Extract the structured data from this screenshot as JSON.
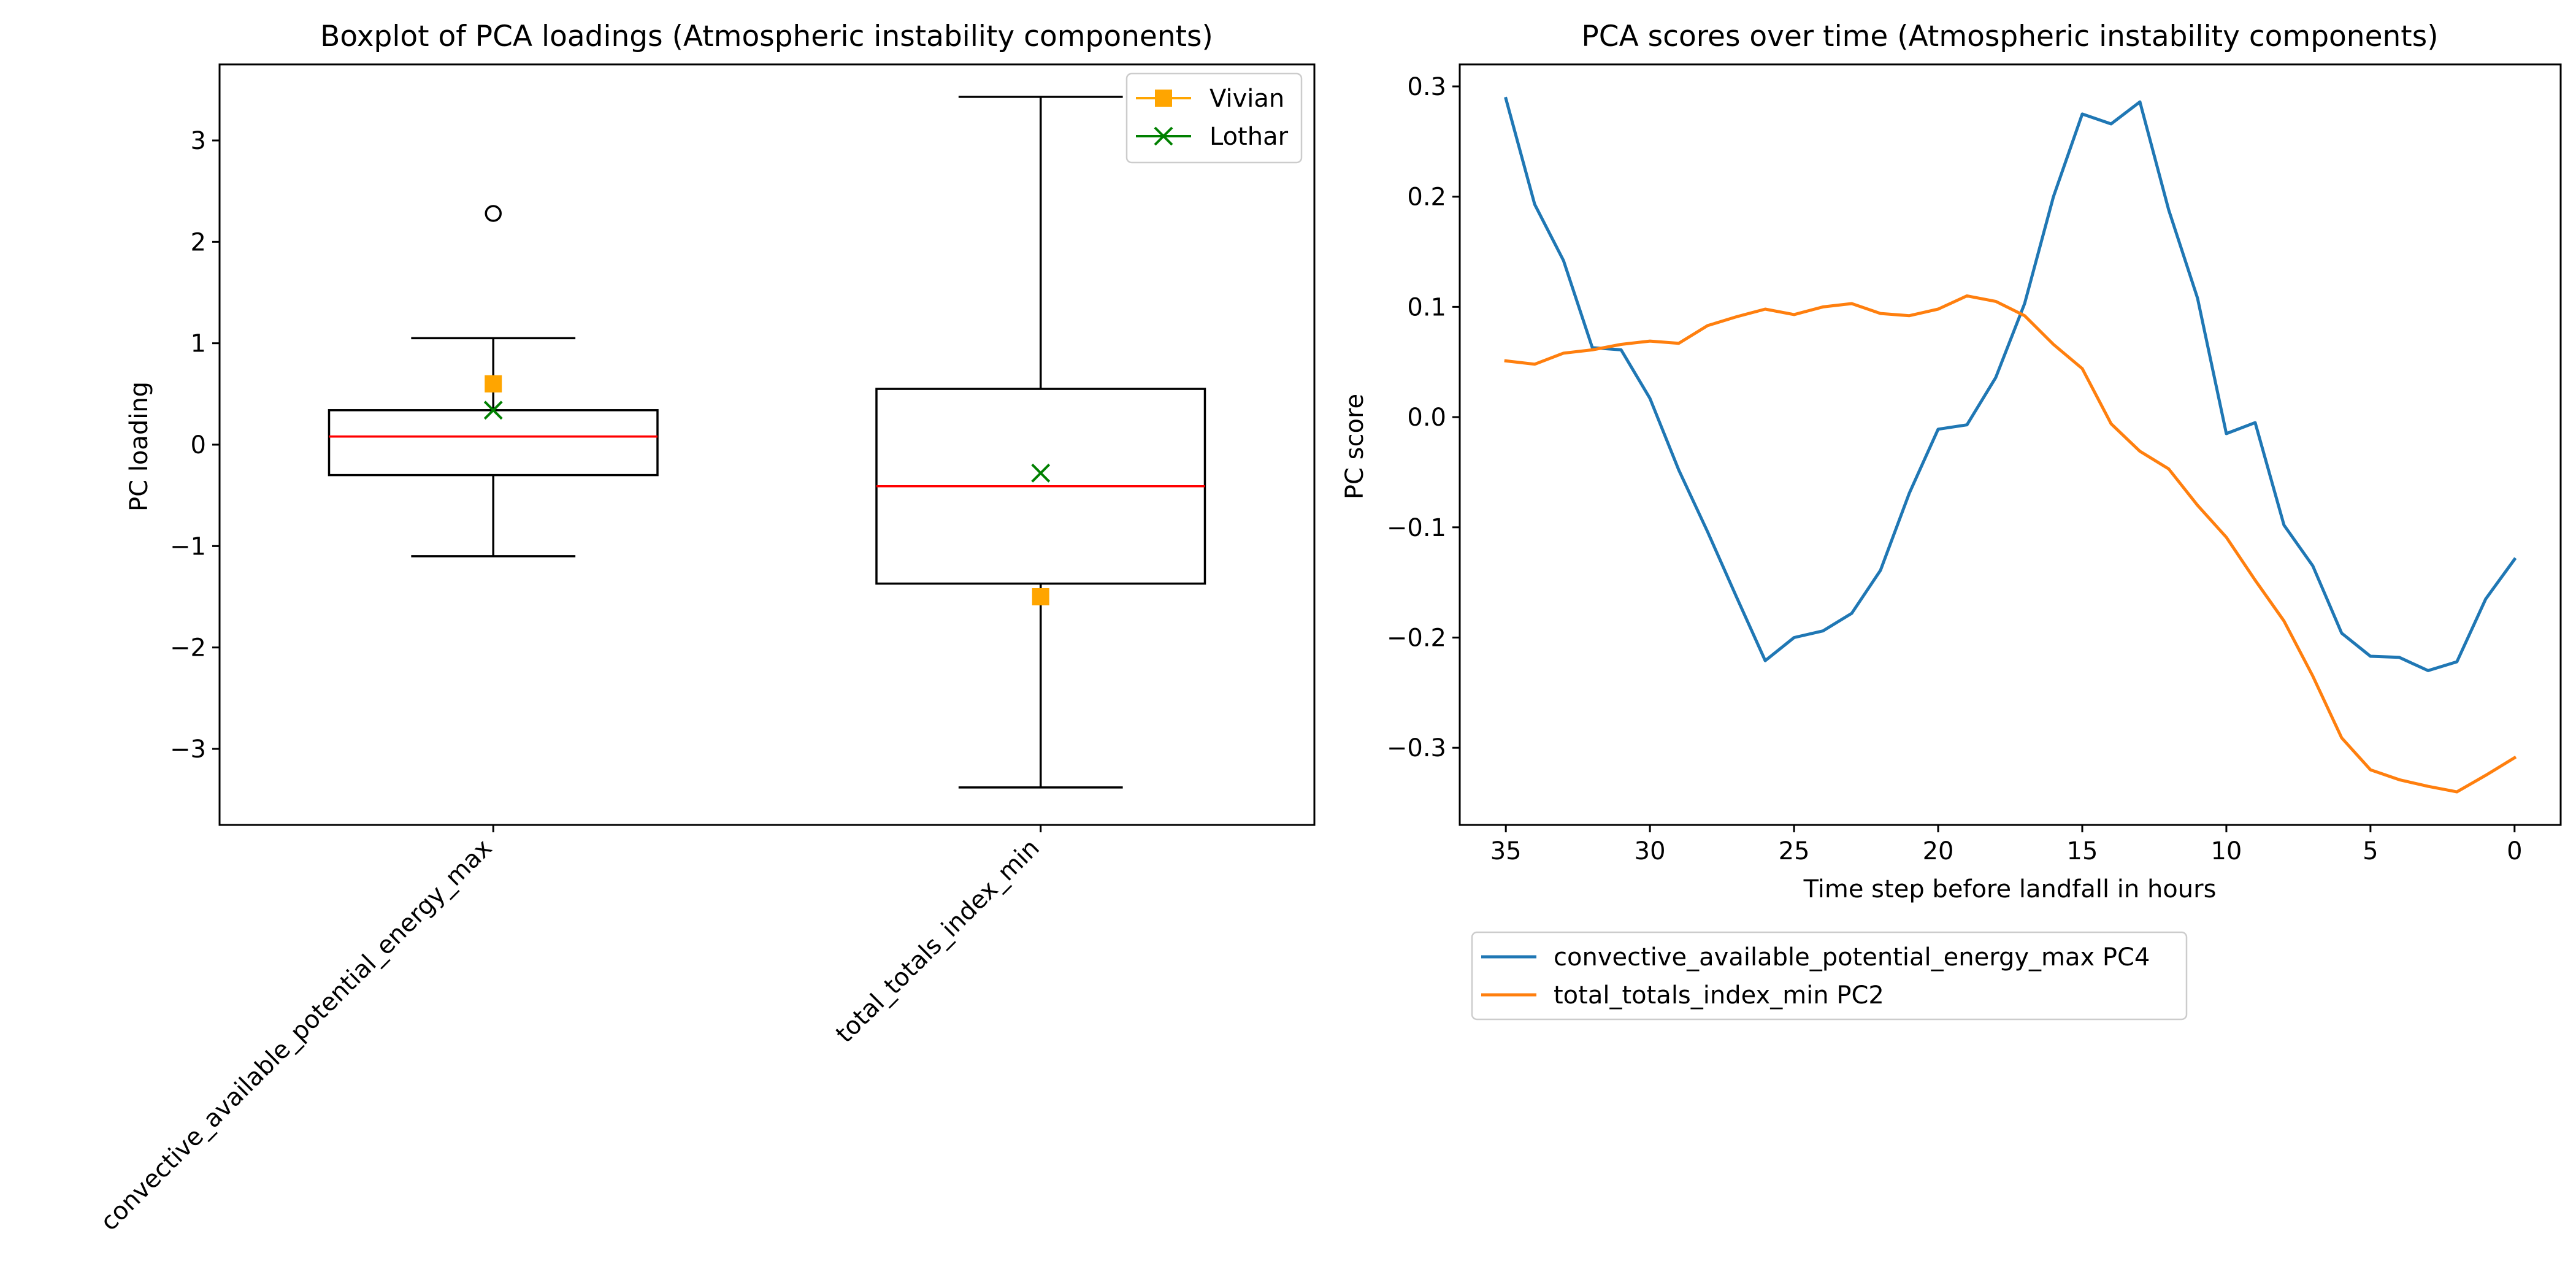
{
  "chart_data": [
    {
      "type": "box",
      "title": "Boxplot of PCA loadings (Atmospheric instability components)",
      "xlabel": "",
      "ylabel": "PC loading",
      "ylim": [
        -3.75,
        3.75
      ],
      "yticks": [
        3,
        2,
        1,
        0,
        -1,
        -2,
        -3
      ],
      "ytick_labels": [
        "3",
        "2",
        "1",
        "0",
        "−1",
        "−2",
        "−3"
      ],
      "categories": [
        "convective_available_potential_energy_max",
        "total_totals_index_min"
      ],
      "boxes": [
        {
          "whisker_low": -1.1,
          "q1": -0.3,
          "median": 0.08,
          "q3": 0.34,
          "whisker_high": 1.05,
          "outliers": [
            2.28
          ]
        },
        {
          "whisker_low": -3.38,
          "q1": -1.37,
          "median": -0.41,
          "q3": 0.55,
          "whisker_high": 3.43,
          "outliers": []
        }
      ],
      "markers": [
        {
          "name": "Vivian",
          "shape": "square",
          "color": "#ffa500",
          "values": [
            0.6,
            -1.5
          ]
        },
        {
          "name": "Lothar",
          "shape": "x",
          "color": "#008000",
          "values": [
            0.34,
            -0.28
          ]
        }
      ],
      "median_color": "#ff0000",
      "legend_position": "upper right"
    },
    {
      "type": "line",
      "title": "PCA scores over time (Atmospheric instability components)",
      "xlabel": "Time step before landfall in hours",
      "ylabel": "PC score",
      "xlim": [
        36.6,
        -1.6
      ],
      "ylim": [
        -0.37,
        0.32
      ],
      "xticks": [
        35,
        30,
        25,
        20,
        15,
        10,
        5,
        0
      ],
      "xtick_labels": [
        "35",
        "30",
        "25",
        "20",
        "15",
        "10",
        "5",
        "0"
      ],
      "yticks": [
        0.3,
        0.2,
        0.1,
        0.0,
        -0.1,
        -0.2,
        -0.3
      ],
      "ytick_labels": [
        "0.3",
        "0.2",
        "0.1",
        "0.0",
        "−0.1",
        "−0.2",
        "−0.3"
      ],
      "x": [
        35,
        34,
        33,
        32,
        31,
        30,
        29,
        28,
        27,
        26,
        25,
        24,
        23,
        22,
        21,
        20,
        19,
        18,
        17,
        16,
        15,
        14,
        13,
        12,
        11,
        10,
        9,
        8,
        7,
        6,
        5,
        4,
        3,
        2,
        1,
        0
      ],
      "series": [
        {
          "name": "convective_available_potential_energy_max PC4",
          "color": "#1f77b4",
          "values": [
            0.289,
            0.193,
            0.142,
            0.063,
            0.061,
            0.017,
            -0.048,
            -0.104,
            -0.163,
            -0.221,
            -0.2,
            -0.194,
            -0.178,
            -0.139,
            -0.069,
            -0.011,
            -0.007,
            0.036,
            0.103,
            0.2,
            0.275,
            0.266,
            0.286,
            0.188,
            0.108,
            -0.015,
            -0.005,
            -0.098,
            -0.135,
            -0.196,
            -0.217,
            -0.218,
            -0.23,
            -0.222,
            -0.165,
            -0.129
          ]
        },
        {
          "name": "total_totals_index_min PC2",
          "color": "#ff7f0e",
          "values": [
            0.051,
            0.048,
            0.058,
            0.061,
            0.066,
            0.069,
            0.067,
            0.083,
            0.091,
            0.098,
            0.093,
            0.1,
            0.103,
            0.094,
            0.092,
            0.098,
            0.11,
            0.105,
            0.092,
            0.066,
            0.044,
            -0.006,
            -0.031,
            -0.047,
            -0.08,
            -0.109,
            -0.148,
            -0.185,
            -0.235,
            -0.291,
            -0.32,
            -0.329,
            -0.335,
            -0.34,
            -0.325,
            -0.309
          ]
        }
      ],
      "legend_position": "below plot"
    }
  ]
}
